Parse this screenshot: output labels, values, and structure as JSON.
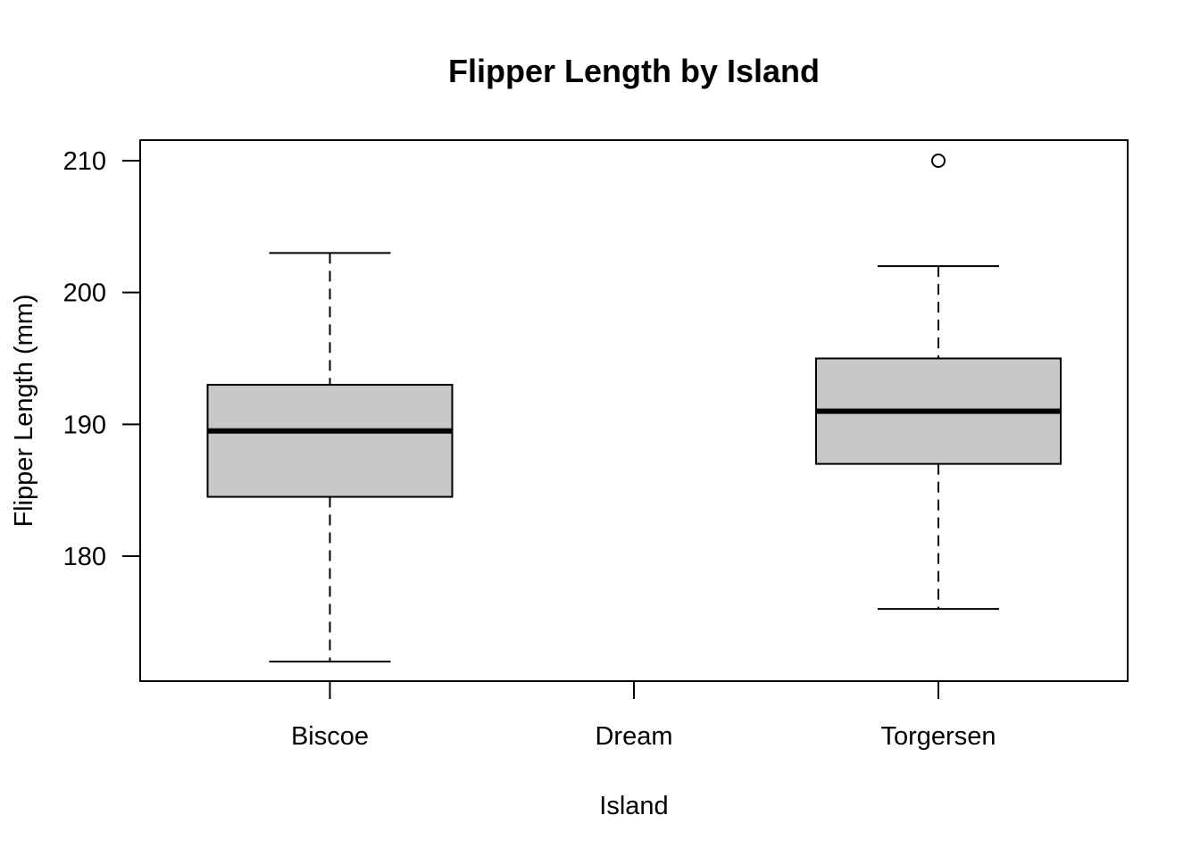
{
  "chart_data": {
    "type": "boxplot",
    "title": "Flipper Length by Island",
    "xlabel": "Island",
    "ylabel": "Flipper Length (mm)",
    "categories": [
      "Biscoe",
      "Dream",
      "Torgersen"
    ],
    "yticks": [
      180,
      190,
      200,
      210
    ],
    "ytick_labels": [
      "180",
      "190",
      "200",
      "210"
    ],
    "ylim": [
      170.6,
      211.6
    ],
    "boxes": [
      {
        "category": "Biscoe",
        "whisker_low": 172,
        "q1": 184.5,
        "median": 189.5,
        "q3": 193,
        "whisker_high": 203,
        "outliers": []
      },
      {
        "category": "Dream",
        "empty": true
      },
      {
        "category": "Torgersen",
        "whisker_low": 176,
        "q1": 187,
        "median": 191,
        "q3": 195,
        "whisker_high": 202,
        "outliers": [
          210
        ]
      }
    ],
    "box_fill": "#c8c8c8",
    "grid": false
  }
}
